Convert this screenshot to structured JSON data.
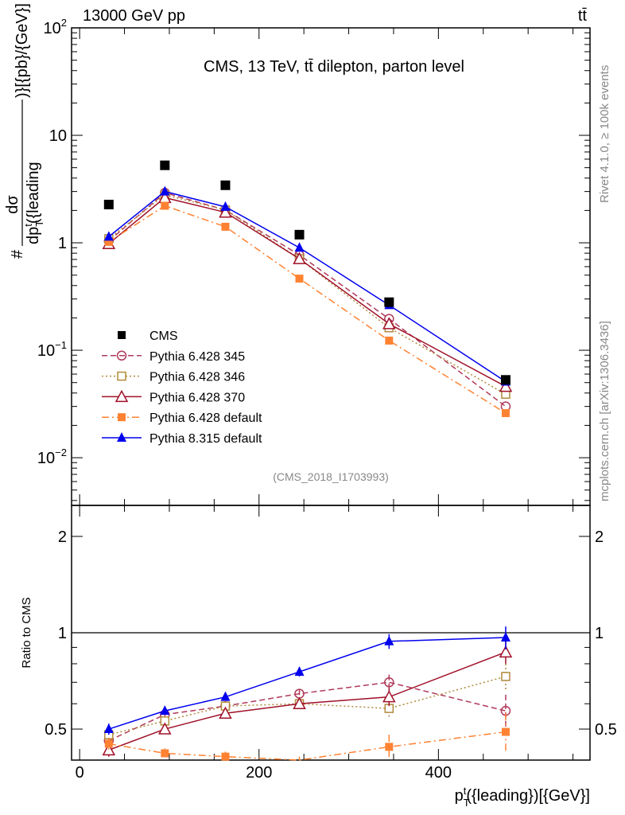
{
  "header": {
    "beam_label": "13000 GeV pp",
    "process_label": "tt̄",
    "plot_title": "CMS, 13 TeV, tt̄ dilepton, parton level",
    "analysis_id": "(CMS_2018_I1703993)",
    "side_label_rivet": "Rivet 4.1.0, ≥ 100k events",
    "side_label_site": "mcplots.cern.ch [arXiv:1306.3436]"
  },
  "chart_data": [
    {
      "type": "line",
      "panel": "main",
      "ylabel_prefix": "#",
      "ylabel_num": "dσ",
      "ylabel_den": "dp",
      "ylabel_den_sub": "T",
      "ylabel_den_sup": "t",
      "ylabel_den_rest": "({leading",
      "ylabel_suffix": ")}[{pb}/{GeV}]",
      "yscale": "log",
      "ylim": [
        0.0036,
        100
      ],
      "xlim": [
        -9,
        569
      ],
      "yticks": [
        {
          "value": 100,
          "label": "10",
          "exp": "2"
        },
        {
          "value": 10,
          "label": "10",
          "exp": ""
        },
        {
          "value": 1,
          "label": "1",
          "exp": ""
        },
        {
          "value": 0.1,
          "label": "10",
          "exp": "−1"
        },
        {
          "value": 0.01,
          "label": "10",
          "exp": "−2"
        }
      ],
      "legend_position": "bottom-left",
      "x": [
        32.5,
        95,
        162.5,
        245,
        345,
        475
      ],
      "series": [
        {
          "name": "CMS",
          "color": "#000000",
          "marker": "square-filled",
          "line": "none",
          "values": [
            2.27,
            5.26,
            3.43,
            1.19,
            0.28,
            0.053
          ]
        },
        {
          "name": "Pythia 6.428 345",
          "color": "#b03a5a",
          "marker": "circle-open",
          "line": "dashed",
          "values": [
            1.04,
            2.92,
            2.02,
            0.77,
            0.196,
            0.03
          ]
        },
        {
          "name": "Pythia 6.428 346",
          "color": "#b08a3c",
          "marker": "square-open",
          "line": "dotted",
          "values": [
            1.09,
            2.79,
            2.02,
            0.71,
            0.162,
            0.039
          ]
        },
        {
          "name": "Pythia 6.428 370",
          "color": "#a01028",
          "marker": "triangle-open",
          "line": "solid",
          "values": [
            0.98,
            2.63,
            1.92,
            0.71,
            0.176,
            0.046
          ]
        },
        {
          "name": "Pythia 6.428 default",
          "color": "#ff8232",
          "marker": "square-filled-small",
          "line": "dashdot",
          "values": [
            1.02,
            2.21,
            1.41,
            0.464,
            0.123,
            0.026
          ]
        },
        {
          "name": "Pythia 8.315 default",
          "color": "#0000ee",
          "marker": "triangle-filled",
          "line": "solid",
          "values": [
            1.14,
            3.0,
            2.16,
            0.9,
            0.263,
            0.051
          ]
        }
      ]
    },
    {
      "type": "line",
      "panel": "ratio",
      "ylabel": "Ratio to CMS",
      "xlabel_main": "p",
      "xlabel_sub": "T",
      "xlabel_sup": "t",
      "xlabel_rest": "({leading})[{GeV}]",
      "yscale": "log",
      "ylim": [
        0.4,
        2.5
      ],
      "xlim": [
        -9,
        569
      ],
      "yticks": [
        {
          "value": 2,
          "label": "2"
        },
        {
          "value": 1,
          "label": "1"
        },
        {
          "value": 0.5,
          "label": "0.5"
        }
      ],
      "xticks": [
        {
          "value": 0,
          "label": "0"
        },
        {
          "value": 200,
          "label": "200"
        },
        {
          "value": 400,
          "label": "400"
        }
      ],
      "reference_line": 1,
      "x": [
        32.5,
        95,
        162.5,
        245,
        345,
        475
      ],
      "series": [
        {
          "name": "Pythia 6.428 345",
          "values": [
            0.46,
            0.555,
            0.59,
            0.645,
            0.7,
            0.57
          ],
          "errors": [
            0.02,
            0.015,
            0.015,
            0.02,
            0.04,
            0.07
          ]
        },
        {
          "name": "Pythia 6.428 346",
          "values": [
            0.48,
            0.53,
            0.59,
            0.6,
            0.58,
            0.73
          ],
          "errors": [
            0.02,
            0.015,
            0.015,
            0.02,
            0.04,
            0.07
          ]
        },
        {
          "name": "Pythia 6.428 370",
          "values": [
            0.43,
            0.5,
            0.56,
            0.6,
            0.63,
            0.87
          ],
          "errors": [
            0.02,
            0.015,
            0.015,
            0.02,
            0.04,
            0.07
          ]
        },
        {
          "name": "Pythia 6.428 default",
          "values": [
            0.45,
            0.42,
            0.41,
            0.39,
            0.44,
            0.49
          ],
          "errors": [
            0.02,
            0.015,
            0.015,
            0.02,
            0.04,
            0.07
          ]
        },
        {
          "name": "Pythia 8.315 default",
          "values": [
            0.5,
            0.57,
            0.63,
            0.755,
            0.94,
            0.966
          ],
          "errors": [
            0.02,
            0.015,
            0.015,
            0.025,
            0.05,
            0.08
          ]
        }
      ]
    }
  ]
}
